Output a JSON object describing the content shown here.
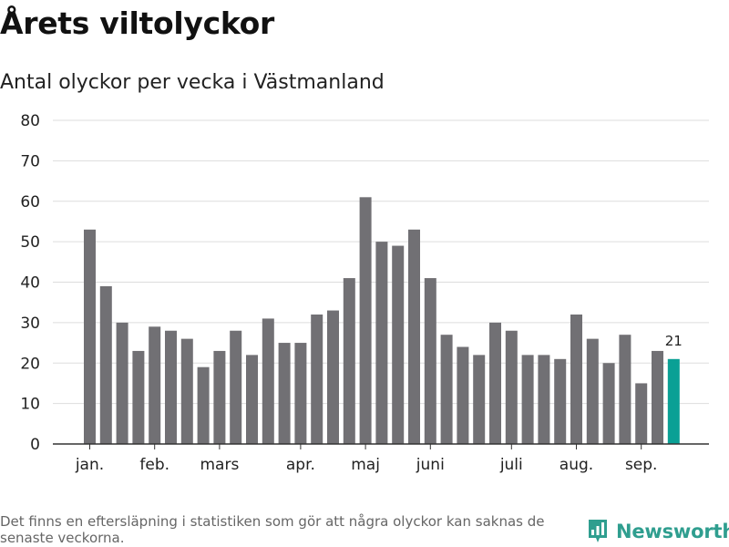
{
  "header": {
    "title": "Årets viltolyckor",
    "subtitle": "Antal olyckor per vecka i Västmanland"
  },
  "footer": {
    "note": "Det finns en eftersläpning i statistiken som gör att några olyckor kan saknas de senaste veckorna.",
    "brand": "Newsworthy",
    "brand_icon": "bar-chart-badge-icon"
  },
  "colors": {
    "bar": "#717074",
    "highlight": "#0aa095",
    "grid": "#dddddd",
    "axis": "#333333",
    "brand": "#2f9e8f"
  },
  "chart_data": {
    "type": "bar",
    "title": "Årets viltolyckor",
    "subtitle": "Antal olyckor per vecka i Västmanland",
    "xlabel": "",
    "ylabel": "",
    "ylim": [
      0,
      80
    ],
    "yticks": [
      0,
      10,
      20,
      30,
      40,
      50,
      60,
      70,
      80
    ],
    "grid": true,
    "values": [
      53,
      39,
      30,
      23,
      29,
      28,
      26,
      19,
      23,
      28,
      22,
      31,
      25,
      25,
      32,
      33,
      41,
      61,
      50,
      49,
      53,
      41,
      27,
      24,
      22,
      30,
      28,
      22,
      22,
      21,
      32,
      26,
      20,
      27,
      15,
      23,
      21
    ],
    "highlight_index": 36,
    "data_labels": [
      {
        "index": 36,
        "text": "21"
      }
    ],
    "month_labels": [
      {
        "label": "jan.",
        "bar_index": 0
      },
      {
        "label": "feb.",
        "bar_index": 4
      },
      {
        "label": "mars",
        "bar_index": 8
      },
      {
        "label": "apr.",
        "bar_index": 13
      },
      {
        "label": "maj",
        "bar_index": 17
      },
      {
        "label": "juni",
        "bar_index": 21
      },
      {
        "label": "juli",
        "bar_index": 26
      },
      {
        "label": "aug.",
        "bar_index": 30
      },
      {
        "label": "sep.",
        "bar_index": 34
      }
    ]
  }
}
